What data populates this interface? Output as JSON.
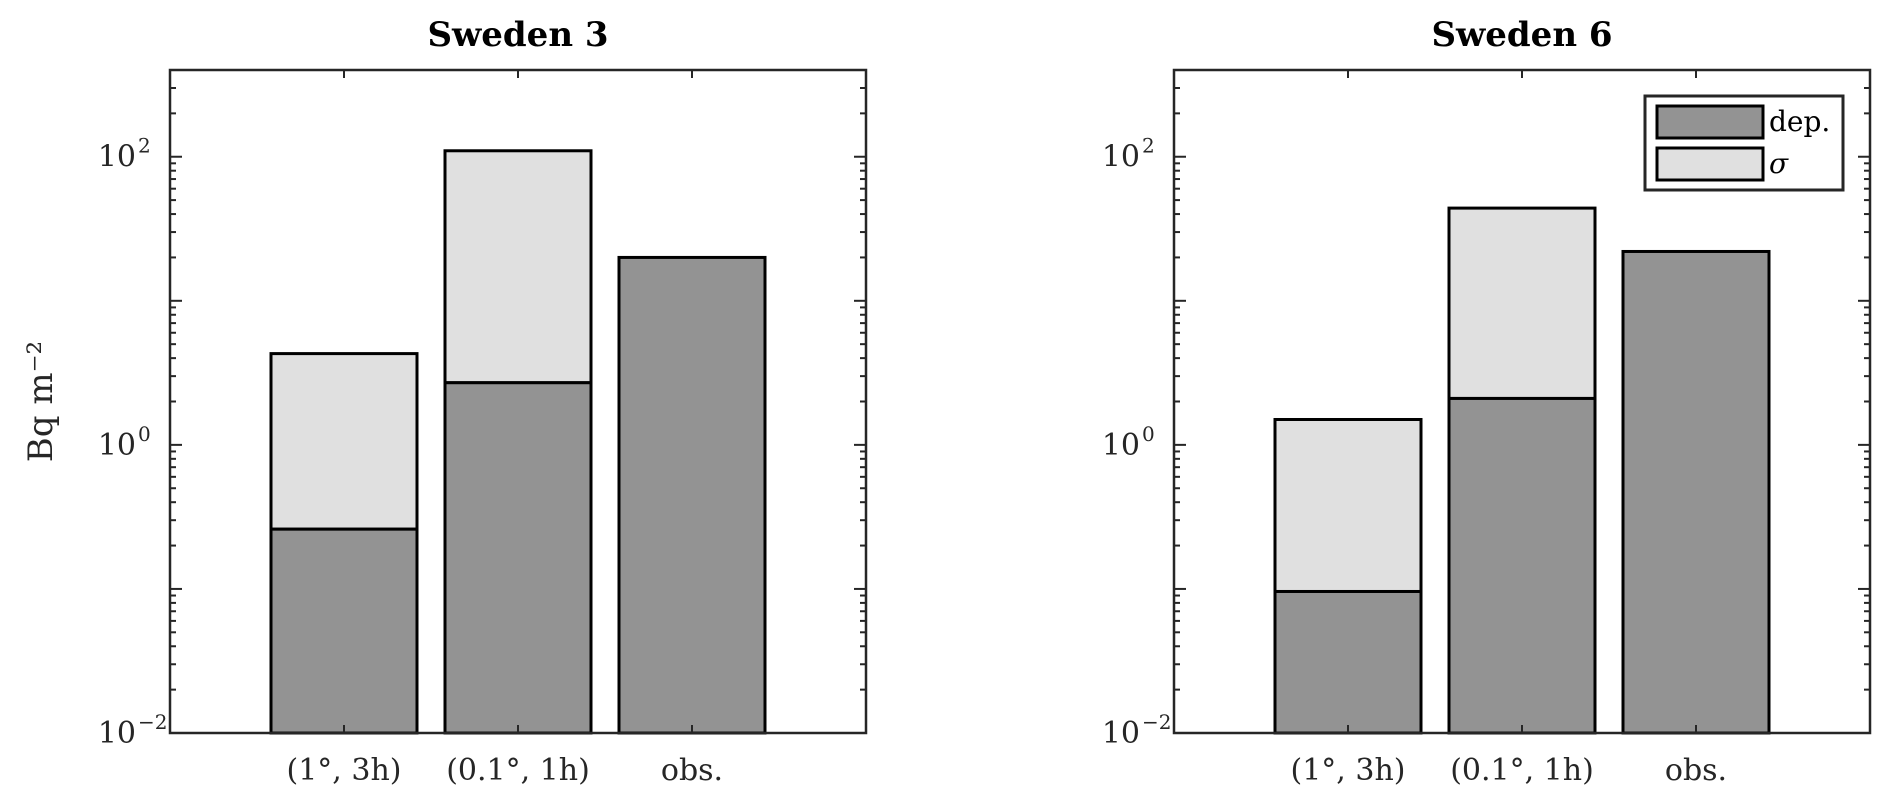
{
  "chart_data": [
    {
      "type": "bar",
      "stacked": true,
      "title": "Sweden 3",
      "ylabel": "Bq m⁻²",
      "yscale": "log",
      "ylim": [
        0.01,
        400
      ],
      "yticks": [
        {
          "base": "10",
          "exp": "−2"
        },
        {
          "base": "10",
          "exp": "0"
        },
        {
          "base": "10",
          "exp": "2"
        }
      ],
      "categories": [
        "(1°, 3h)",
        "(0.1°, 1h)",
        "obs."
      ],
      "series": [
        {
          "name": "dep.",
          "values": [
            0.26,
            2.7,
            20
          ],
          "color": "#939393"
        },
        {
          "name": "σ",
          "values": [
            4.3,
            110,
            null
          ],
          "color": "#e0e0e0"
        }
      ],
      "legend": null
    },
    {
      "type": "bar",
      "stacked": true,
      "title": "Sweden 6",
      "ylabel": "",
      "yscale": "log",
      "ylim": [
        0.01,
        400
      ],
      "yticks": [
        {
          "base": "10",
          "exp": "−2"
        },
        {
          "base": "10",
          "exp": "0"
        },
        {
          "base": "10",
          "exp": "2"
        }
      ],
      "categories": [
        "(1°, 3h)",
        "(0.1°, 1h)",
        "obs."
      ],
      "series": [
        {
          "name": "dep.",
          "values": [
            0.096,
            2.1,
            22
          ],
          "color": "#939393"
        },
        {
          "name": "σ",
          "values": [
            1.5,
            44,
            null
          ],
          "color": "#e0e0e0"
        }
      ],
      "legend": "top-right"
    }
  ]
}
